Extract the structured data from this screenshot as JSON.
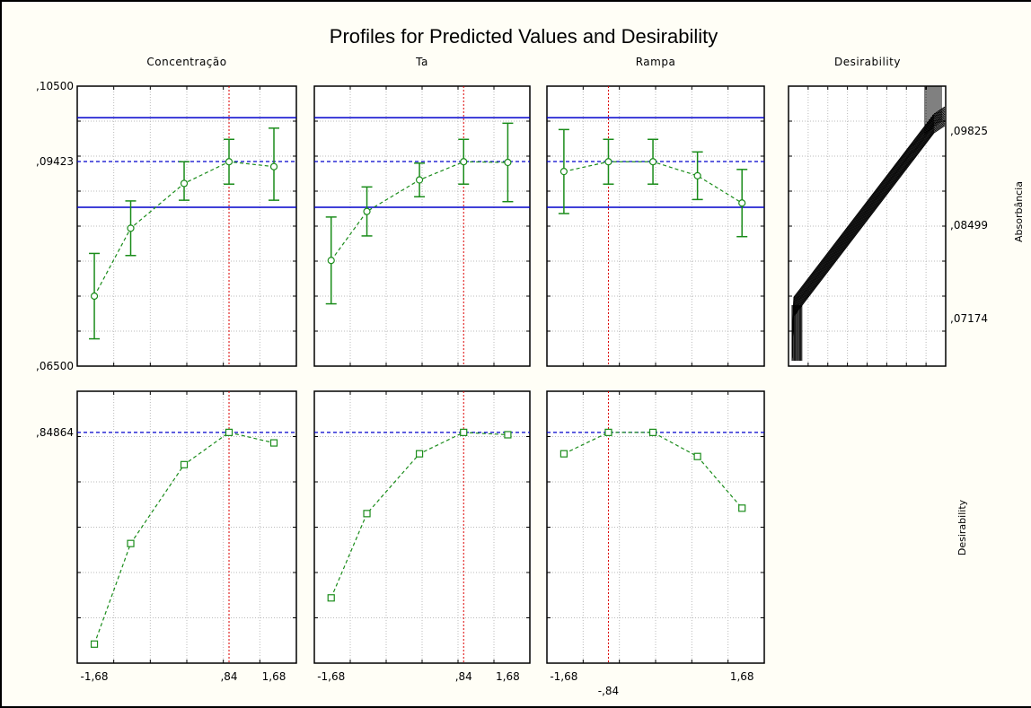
{
  "chart_data": {
    "type": "line",
    "title": "Profiles for Predicted Values and Desirability",
    "factors": [
      "Concentração",
      "Ta",
      "Rampa"
    ],
    "desirability_column_title": "Desirability",
    "x_levels": [
      -1.68,
      -1,
      0,
      0.84,
      1.68
    ],
    "x_tick_labels": {
      "Concentração": [
        "-1,68",
        ",84",
        "1,68"
      ],
      "Ta": [
        "-1,68",
        ",84",
        "1,68"
      ],
      "Rampa": [
        "-1,68",
        "-,84",
        "1,68"
      ]
    },
    "current_x": {
      "Concentração": 0.84,
      "Ta": 0.84,
      "Rampa": -0.84
    },
    "response": {
      "ylabel": "Absorbância",
      "ylim": [
        0.065,
        0.105
      ],
      "ytick_labels": [
        ",10500",
        ",09423",
        ",06500"
      ],
      "predicted_value": 0.09423,
      "ci_band": [
        0.0877,
        0.1005
      ],
      "series": [
        {
          "factor": "Concentração",
          "x": [
            -1.68,
            -1,
            0,
            0.84,
            1.68
          ],
          "values": [
            0.075,
            0.0847,
            0.0911,
            0.0942,
            0.0935
          ],
          "lower": [
            0.0689,
            0.0808,
            0.0887,
            0.091,
            0.0887
          ],
          "upper": [
            0.0811,
            0.0886,
            0.0942,
            0.0974,
            0.099
          ]
        },
        {
          "factor": "Ta",
          "x": [
            -1.68,
            -1,
            0,
            0.84,
            1.68
          ],
          "values": [
            0.0801,
            0.0871,
            0.0916,
            0.0942,
            0.0941
          ],
          "lower": [
            0.0739,
            0.0836,
            0.0892,
            0.091,
            0.0885
          ],
          "upper": [
            0.0863,
            0.0906,
            0.094,
            0.0974,
            0.0997
          ]
        },
        {
          "factor": "Rampa",
          "x": [
            -1.68,
            -0.84,
            0,
            0.84,
            1.68
          ],
          "values": [
            0.0928,
            0.0942,
            0.0942,
            0.0922,
            0.0883
          ],
          "lower": [
            0.0868,
            0.091,
            0.091,
            0.0888,
            0.0835
          ],
          "upper": [
            0.0988,
            0.0974,
            0.0974,
            0.0956,
            0.0931
          ]
        }
      ]
    },
    "desirability": {
      "ylabel": "Desirability",
      "ylim": [
        0.0,
        1.0
      ],
      "ytick_labels": [
        ",84864"
      ],
      "current_value": 0.84864,
      "series": [
        {
          "factor": "Concentração",
          "x": [
            -1.68,
            -1,
            0,
            0.84,
            1.68
          ],
          "values": [
            0.07,
            0.44,
            0.73,
            0.8486,
            0.81
          ]
        },
        {
          "factor": "Ta",
          "x": [
            -1.68,
            -1,
            0,
            0.84,
            1.68
          ],
          "values": [
            0.24,
            0.55,
            0.77,
            0.8486,
            0.84
          ]
        },
        {
          "factor": "Rampa",
          "x": [
            -1.68,
            -0.84,
            0,
            0.84,
            1.68
          ],
          "values": [
            0.77,
            0.8486,
            0.8486,
            0.76,
            0.57
          ]
        }
      ]
    },
    "desirability_profile": {
      "ytick_labels": [
        ",09825",
        ",08499",
        ",07174"
      ],
      "ylabel": "Absorbância"
    }
  }
}
